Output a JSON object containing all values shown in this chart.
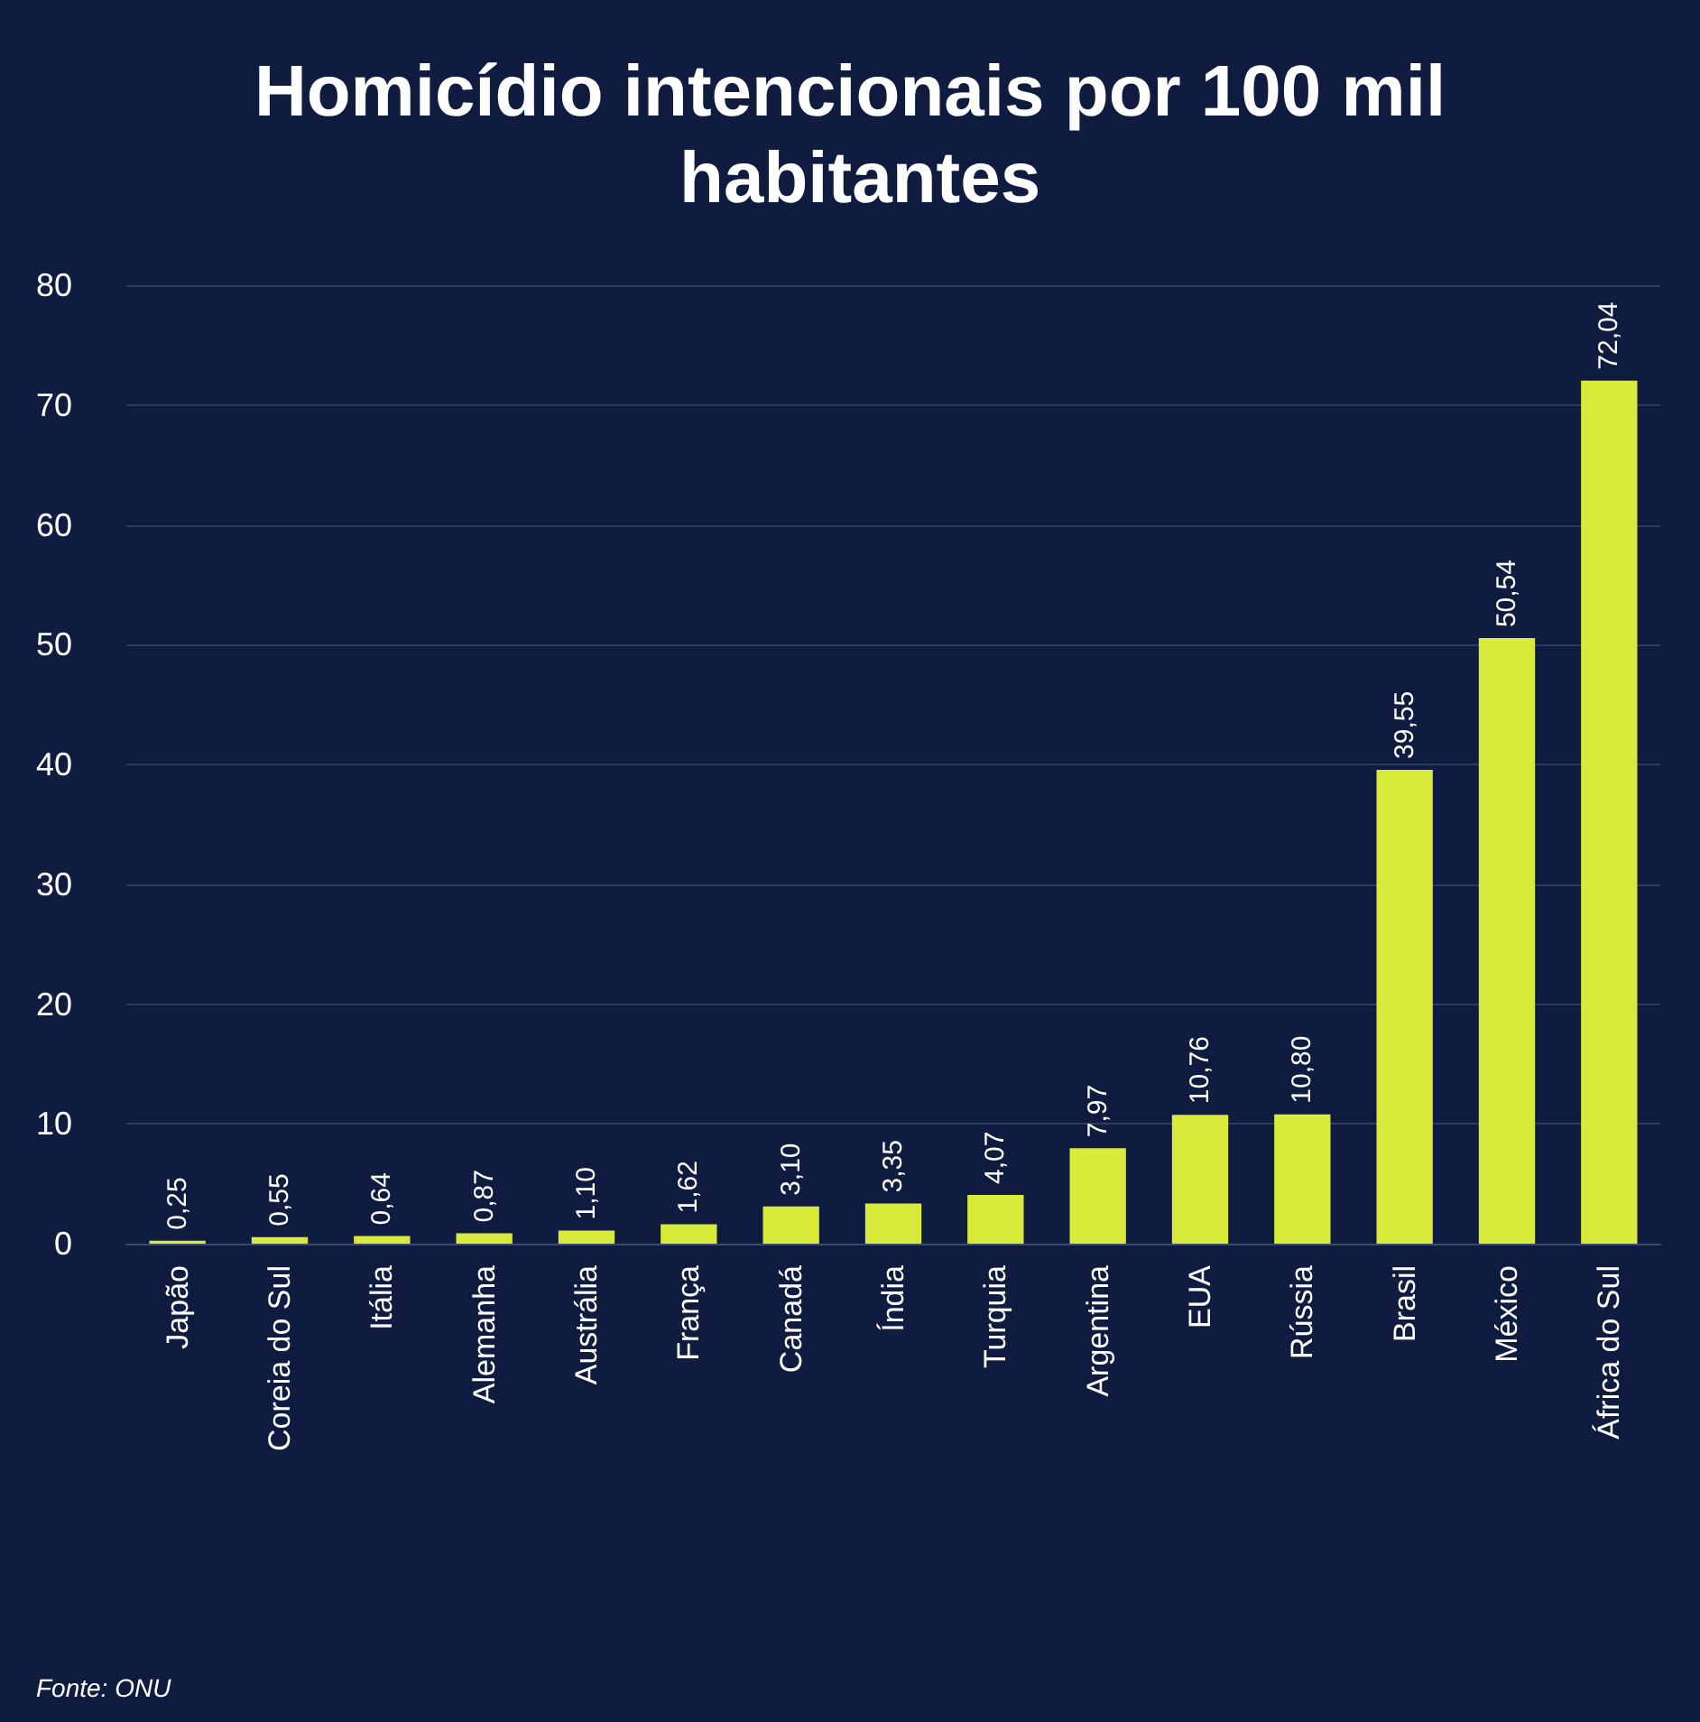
{
  "chart_data": {
    "type": "bar",
    "title": "Homicídio intencionais por 100 mil habitantes",
    "categories": [
      "Japão",
      "Coreia do Sul",
      "Itália",
      "Alemanha",
      "Austrália",
      "França",
      "Canadá",
      "Índia",
      "Turquia",
      "Argentina",
      "EUA",
      "Rússia",
      "Brasil",
      "México",
      "África do Sul"
    ],
    "values": [
      0.25,
      0.55,
      0.64,
      0.87,
      1.1,
      1.62,
      3.1,
      3.35,
      4.07,
      7.97,
      10.76,
      10.8,
      39.55,
      50.54,
      72.04
    ],
    "value_labels": [
      "0,25",
      "0,55",
      "0,64",
      "0,87",
      "1,10",
      "1,62",
      "3,10",
      "3,35",
      "4,07",
      "7,97",
      "10,76",
      "10,80",
      "39,55",
      "50,54",
      "72,04"
    ],
    "color": "#d8ea3a",
    "ylim": [
      0,
      80
    ],
    "yticks": [
      0,
      10,
      20,
      30,
      40,
      50,
      60,
      70,
      80
    ],
    "grid": "y",
    "annotations": [
      "Fonte: ONU"
    ]
  }
}
